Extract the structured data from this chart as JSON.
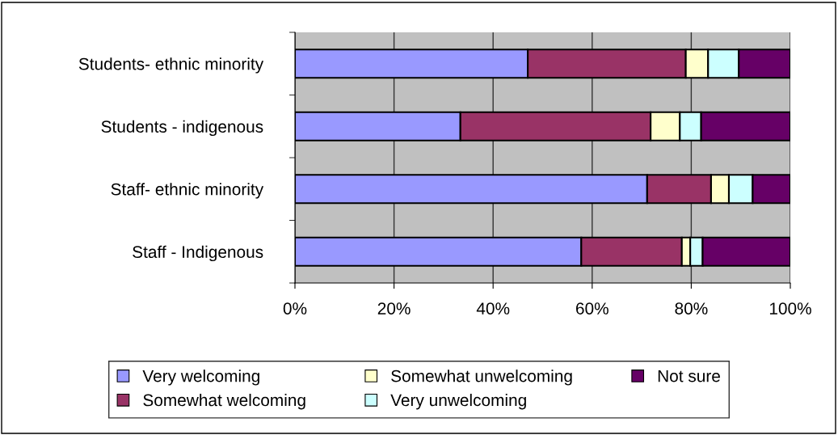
{
  "chart_data": {
    "type": "bar",
    "orientation": "horizontal",
    "stacked": true,
    "categories": [
      "Students- ethnic minority",
      "Students - indigenous",
      "Staff- ethnic minority",
      "Staff - Indigenous"
    ],
    "series": [
      {
        "name": "Very welcoming",
        "color": "#9999ff",
        "values": [
          47.0,
          33.4,
          71.1,
          57.8
        ]
      },
      {
        "name": "Somewhat welcoming",
        "color": "#993366",
        "values": [
          31.9,
          38.4,
          12.9,
          20.3
        ]
      },
      {
        "name": "Somewhat unwelcoming",
        "color": "#ffffcc",
        "values": [
          4.5,
          5.9,
          3.6,
          1.7
        ]
      },
      {
        "name": "Very unwelcoming",
        "color": "#ccffff",
        "values": [
          6.2,
          4.3,
          4.8,
          2.5
        ]
      },
      {
        "name": "Not sure",
        "color": "#660066",
        "values": [
          10.4,
          18.0,
          7.6,
          17.7
        ]
      }
    ],
    "xlim": [
      0,
      100
    ],
    "xticks": [
      {
        "value": 0,
        "label": "0%"
      },
      {
        "value": 20,
        "label": "20%"
      },
      {
        "value": 40,
        "label": "40%"
      },
      {
        "value": 60,
        "label": "60%"
      },
      {
        "value": 80,
        "label": "80%"
      },
      {
        "value": 100,
        "label": "100%"
      }
    ],
    "grid": "x",
    "legend": "bottom"
  }
}
